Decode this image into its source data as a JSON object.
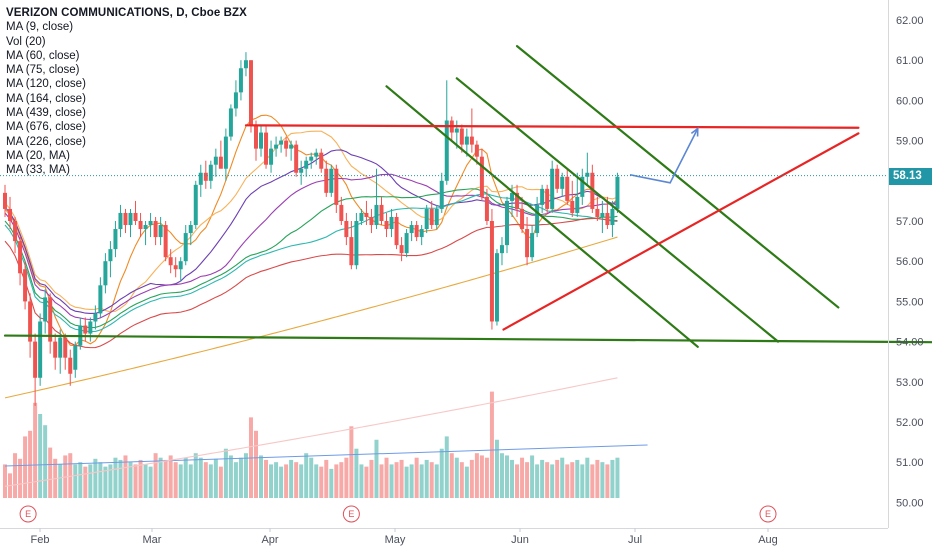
{
  "chart_data": {
    "type": "candlestick",
    "title": "VERIZON COMMUNICATIONS, D, Cboe BZX",
    "indicators": [
      "MA (9, close)",
      "Vol (20)",
      "MA (60, close)",
      "MA (75, close)",
      "MA (120, close)",
      "MA (164, close)",
      "MA (439, close)",
      "MA (676, close)",
      "MA (226, close)",
      "MA (20, MA)",
      "MA (33, MA)"
    ],
    "last_price": "58.13",
    "y_ticks": [
      "62.00",
      "61.00",
      "60.00",
      "59.00",
      "58.00",
      "57.00",
      "56.00",
      "55.00",
      "54.00",
      "53.00",
      "52.00",
      "51.00",
      "50.00"
    ],
    "ylim": [
      49.5,
      62.3
    ],
    "x_ticks": [
      "Feb",
      "Mar",
      "Apr",
      "May",
      "Jun",
      "Jul",
      "Aug"
    ],
    "earnings_marker": "E",
    "candles": [
      [
        57.7,
        57.9,
        57.1,
        57.3
      ],
      [
        57.3,
        57.6,
        56.8,
        57.0
      ],
      [
        57.0,
        57.1,
        56.2,
        56.5
      ],
      [
        56.5,
        56.6,
        55.4,
        55.7
      ],
      [
        55.8,
        56.0,
        54.8,
        55.0
      ],
      [
        55.0,
        55.2,
        53.6,
        54.0
      ],
      [
        54.0,
        54.2,
        52.4,
        53.1
      ],
      [
        53.1,
        54.7,
        52.9,
        54.5
      ],
      [
        54.5,
        55.3,
        54.2,
        55.1
      ],
      [
        55.1,
        55.2,
        53.7,
        54.0
      ],
      [
        54.0,
        54.2,
        53.3,
        53.6
      ],
      [
        53.6,
        54.3,
        53.2,
        54.1
      ],
      [
        54.1,
        54.2,
        53.3,
        53.6
      ],
      [
        53.6,
        53.8,
        52.9,
        53.2
      ],
      [
        53.3,
        54.0,
        53.1,
        53.9
      ],
      [
        53.9,
        54.6,
        53.8,
        54.4
      ],
      [
        54.4,
        54.6,
        54.0,
        54.2
      ],
      [
        54.2,
        54.6,
        54.0,
        54.5
      ],
      [
        54.5,
        54.9,
        54.3,
        54.7
      ],
      [
        54.7,
        55.6,
        54.6,
        55.4
      ],
      [
        55.4,
        56.2,
        55.2,
        56.0
      ],
      [
        56.0,
        56.5,
        55.6,
        56.3
      ],
      [
        56.3,
        57.0,
        56.1,
        56.8
      ],
      [
        56.8,
        57.4,
        56.6,
        57.2
      ],
      [
        57.2,
        57.3,
        56.7,
        56.9
      ],
      [
        56.9,
        57.3,
        56.6,
        57.2
      ],
      [
        57.2,
        57.5,
        56.9,
        57.0
      ],
      [
        57.0,
        57.2,
        56.6,
        56.8
      ],
      [
        56.8,
        57.0,
        56.4,
        56.9
      ],
      [
        56.9,
        57.2,
        56.6,
        57.0
      ],
      [
        57.0,
        57.1,
        56.4,
        56.6
      ],
      [
        56.6,
        57.1,
        56.4,
        56.9
      ],
      [
        56.9,
        57.0,
        56.0,
        56.1
      ],
      [
        56.1,
        56.3,
        55.7,
        55.9
      ],
      [
        55.9,
        56.1,
        55.6,
        55.8
      ],
      [
        55.8,
        56.1,
        55.5,
        56.0
      ],
      [
        56.0,
        56.9,
        55.9,
        56.7
      ],
      [
        56.7,
        57.0,
        56.4,
        56.9
      ],
      [
        56.9,
        58.0,
        56.8,
        57.9
      ],
      [
        57.9,
        58.4,
        57.6,
        58.2
      ],
      [
        58.2,
        58.5,
        57.8,
        58.0
      ],
      [
        58.0,
        58.5,
        57.8,
        58.4
      ],
      [
        58.4,
        58.8,
        58.1,
        58.6
      ],
      [
        58.6,
        59.0,
        58.4,
        58.3
      ],
      [
        58.3,
        59.3,
        58.0,
        59.1
      ],
      [
        59.1,
        59.9,
        59.0,
        59.8
      ],
      [
        59.8,
        60.5,
        59.6,
        60.2
      ],
      [
        60.2,
        61.0,
        60.0,
        60.8
      ],
      [
        60.8,
        61.2,
        60.6,
        61.0
      ],
      [
        61.0,
        61.0,
        59.2,
        59.4
      ],
      [
        59.4,
        59.5,
        58.5,
        58.8
      ],
      [
        58.8,
        59.4,
        58.6,
        59.2
      ],
      [
        59.2,
        59.4,
        58.3,
        58.4
      ],
      [
        58.4,
        59.0,
        58.2,
        58.8
      ],
      [
        58.8,
        59.1,
        58.6,
        58.9
      ],
      [
        58.9,
        59.1,
        58.7,
        59.0
      ],
      [
        59.0,
        59.1,
        58.6,
        58.8
      ],
      [
        58.8,
        59.0,
        58.5,
        58.9
      ],
      [
        58.9,
        59.0,
        58.1,
        58.2
      ],
      [
        58.2,
        58.5,
        57.9,
        58.3
      ],
      [
        58.3,
        58.6,
        58.1,
        58.5
      ],
      [
        58.5,
        58.7,
        58.3,
        58.6
      ],
      [
        58.6,
        58.8,
        58.4,
        58.7
      ],
      [
        58.7,
        58.8,
        58.2,
        58.3
      ],
      [
        58.3,
        58.5,
        57.6,
        57.7
      ],
      [
        57.7,
        58.4,
        57.6,
        58.3
      ],
      [
        58.3,
        58.4,
        57.2,
        57.4
      ],
      [
        57.4,
        57.6,
        56.9,
        57.0
      ],
      [
        57.0,
        57.2,
        56.4,
        56.6
      ],
      [
        56.6,
        57.0,
        55.8,
        55.9
      ],
      [
        55.9,
        57.2,
        55.8,
        57.0
      ],
      [
        57.0,
        57.3,
        56.9,
        57.2
      ],
      [
        57.2,
        57.5,
        56.9,
        57.1
      ],
      [
        57.1,
        57.3,
        56.7,
        56.9
      ],
      [
        56.9,
        58.3,
        56.8,
        57.4
      ],
      [
        57.4,
        57.6,
        56.9,
        57.0
      ],
      [
        57.0,
        57.2,
        56.6,
        56.8
      ],
      [
        56.8,
        57.3,
        56.6,
        57.1
      ],
      [
        57.1,
        57.2,
        56.3,
        56.4
      ],
      [
        56.4,
        56.6,
        56.0,
        56.2
      ],
      [
        56.2,
        56.8,
        56.1,
        56.7
      ],
      [
        56.7,
        57.0,
        56.5,
        56.9
      ],
      [
        56.9,
        57.0,
        56.5,
        56.6
      ],
      [
        56.6,
        56.9,
        56.4,
        56.8
      ],
      [
        56.8,
        57.4,
        56.7,
        57.3
      ],
      [
        57.3,
        57.5,
        56.8,
        56.9
      ],
      [
        56.9,
        57.4,
        56.8,
        57.3
      ],
      [
        57.3,
        58.2,
        57.2,
        58.0
      ],
      [
        58.0,
        60.5,
        57.9,
        59.5
      ],
      [
        59.5,
        59.6,
        59.0,
        59.2
      ],
      [
        59.2,
        59.5,
        58.8,
        59.3
      ],
      [
        59.3,
        59.4,
        58.7,
        58.9
      ],
      [
        58.9,
        59.3,
        58.6,
        59.1
      ],
      [
        59.1,
        59.8,
        58.7,
        58.9
      ],
      [
        58.9,
        59.0,
        58.4,
        58.6
      ],
      [
        58.6,
        58.8,
        57.5,
        57.6
      ],
      [
        57.6,
        57.8,
        56.9,
        57.0
      ],
      [
        57.0,
        57.3,
        54.3,
        54.5
      ],
      [
        54.5,
        56.3,
        54.4,
        56.2
      ],
      [
        56.2,
        56.6,
        55.9,
        56.4
      ],
      [
        56.4,
        57.6,
        56.2,
        57.5
      ],
      [
        57.5,
        57.9,
        57.1,
        57.7
      ],
      [
        57.7,
        57.9,
        57.1,
        57.3
      ],
      [
        57.3,
        57.6,
        56.7,
        56.8
      ],
      [
        56.8,
        57.1,
        55.9,
        56.1
      ],
      [
        56.1,
        56.9,
        56.0,
        56.7
      ],
      [
        56.7,
        57.6,
        56.6,
        57.4
      ],
      [
        57.4,
        57.9,
        57.2,
        57.8
      ],
      [
        57.8,
        57.9,
        57.2,
        57.3
      ],
      [
        57.3,
        58.5,
        57.2,
        58.3
      ],
      [
        58.3,
        58.4,
        57.7,
        57.8
      ],
      [
        57.8,
        58.2,
        57.6,
        58.1
      ],
      [
        58.1,
        58.3,
        57.4,
        57.5
      ],
      [
        57.5,
        58.0,
        57.1,
        57.2
      ],
      [
        57.2,
        58.2,
        57.1,
        57.6
      ],
      [
        57.6,
        58.3,
        57.4,
        58.1
      ],
      [
        58.1,
        58.7,
        57.9,
        58.2
      ],
      [
        58.2,
        58.4,
        57.2,
        57.3
      ],
      [
        57.3,
        57.6,
        57.0,
        57.1
      ],
      [
        57.1,
        57.5,
        56.7,
        57.2
      ],
      [
        57.2,
        57.6,
        56.8,
        56.9
      ],
      [
        56.9,
        57.5,
        56.6,
        57.3
      ],
      [
        57.3,
        58.2,
        57.2,
        58.1
      ]
    ],
    "volume": [
      30,
      22,
      40,
      35,
      55,
      60,
      85,
      75,
      65,
      45,
      35,
      30,
      38,
      40,
      30,
      32,
      28,
      30,
      35,
      32,
      28,
      30,
      36,
      34,
      38,
      32,
      30,
      34,
      30,
      28,
      40,
      36,
      34,
      38,
      32,
      30,
      36,
      30,
      40,
      36,
      32,
      30,
      35,
      28,
      44,
      38,
      32,
      36,
      40,
      72,
      60,
      38,
      34,
      30,
      32,
      28,
      30,
      34,
      32,
      30,
      40,
      36,
      30,
      28,
      34,
      26,
      30,
      32,
      36,
      64,
      44,
      30,
      28,
      34,
      52,
      30,
      36,
      30,
      32,
      34,
      28,
      30,
      36,
      30,
      34,
      32,
      30,
      44,
      55,
      40,
      36,
      32,
      28,
      34,
      40,
      38,
      36,
      95,
      52,
      40,
      38,
      34,
      30,
      36,
      32,
      38,
      30,
      34,
      32,
      30,
      34,
      36,
      30,
      32,
      34,
      30,
      36,
      30,
      34,
      32,
      30,
      34,
      36
    ],
    "volume_ma": [
      {
        "x": 0,
        "v": 0.09
      },
      {
        "x": 128,
        "v": 0.245
      }
    ],
    "ma_series_colors": [
      "#f08a24",
      "#f7b25a",
      "#4b7df2",
      "#2eb8b0",
      "#d94a4a",
      "#6c3fb3",
      "#f7c7c7",
      "#e7a93f",
      "#27a35a",
      "#9b3fb3",
      "#2e9a8e"
    ],
    "annotations": {
      "support_line": {
        "color": "#2d7a16",
        "from": {
          "x": 0,
          "y": 54.15
        },
        "to": {
          "x": 190,
          "y": 53.98
        }
      },
      "red_triangle_top": {
        "color": "#e82525",
        "from": {
          "x": 48,
          "y": 59.38
        },
        "to": {
          "x": 170,
          "y": 59.32
        }
      },
      "red_triangle_rising": {
        "color": "#e82525",
        "from": {
          "x": 99.3,
          "y": 54.3
        },
        "to": {
          "x": 170,
          "y": 59.18
        }
      },
      "green_channel": [
        {
          "color": "#2d7a16",
          "from": {
            "x": 76,
            "y": 60.35
          },
          "to": {
            "x": 138,
            "y": 53.87
          }
        },
        {
          "color": "#2d7a16",
          "from": {
            "x": 90,
            "y": 60.55
          },
          "to": {
            "x": 154,
            "y": 54.0
          }
        },
        {
          "color": "#2d7a16",
          "from": {
            "x": 102,
            "y": 61.35
          },
          "to": {
            "x": 166,
            "y": 54.85
          }
        }
      ],
      "projection_arrow": {
        "color": "#5b87d4",
        "points": [
          {
            "x": 124.5,
            "y": 58.15
          },
          {
            "x": 132.5,
            "y": 57.95
          },
          {
            "x": 138,
            "y": 59.3
          }
        ]
      }
    },
    "earnings_markers_at": [
      5,
      69,
      147
    ]
  }
}
